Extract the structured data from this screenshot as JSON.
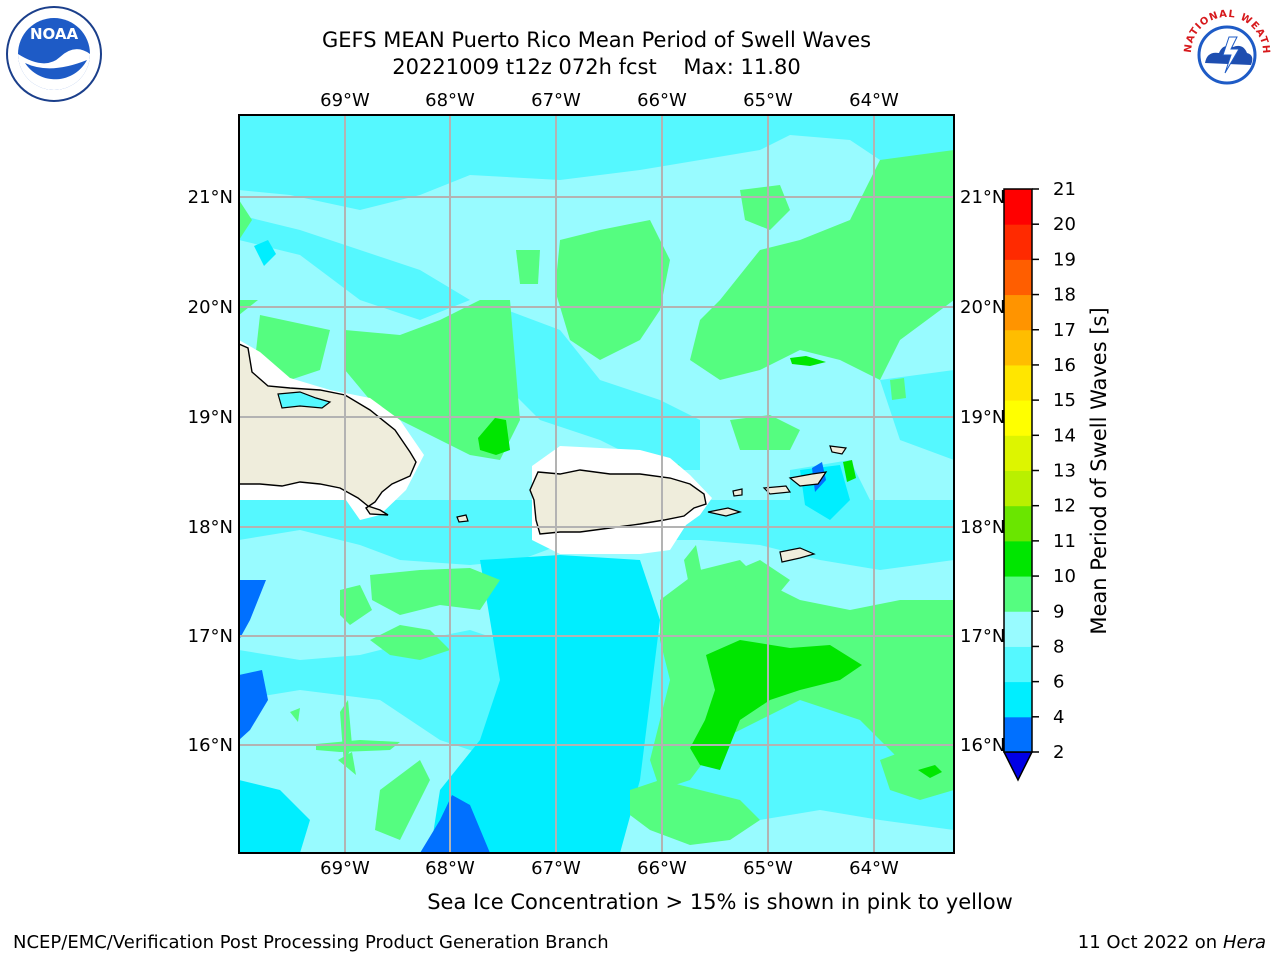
{
  "title": {
    "line1": "GEFS MEAN Puerto Rico Mean Period of Swell Waves",
    "line2": "20221009 t12z 072h fcst    Max: 11.80"
  },
  "map": {
    "lon_labels": [
      "69°W",
      "68°W",
      "67°W",
      "66°W",
      "65°W",
      "64°W"
    ],
    "lat_labels": [
      "21°N",
      "20°N",
      "19°N",
      "18°N",
      "17°N",
      "16°N"
    ],
    "colors": {
      "land": "#efeddc",
      "ocean_base": "#98fbff",
      "grid": "#b3b3b3"
    }
  },
  "colorbar": {
    "label": "Mean Period of Swell Waves [s]",
    "ticks": [
      "2",
      "4",
      "6",
      "8",
      "9",
      "10",
      "11",
      "12",
      "13",
      "14",
      "15",
      "16",
      "17",
      "18",
      "19",
      "20",
      "21"
    ],
    "colors": [
      "#0000e6",
      "#0070ff",
      "#00eeff",
      "#55f8ff",
      "#98fbff",
      "#55fd80",
      "#00e600",
      "#6ae600",
      "#b9f000",
      "#ddf500",
      "#ffff00",
      "#ffe600",
      "#ffbd00",
      "#ff9400",
      "#ff5e00",
      "#ff2a00",
      "#ff0000"
    ]
  },
  "note": "Sea Ice Concentration > 15% is shown in pink to yellow",
  "footer": {
    "left": "NCEP/EMC/Verification Post Processing Product Generation Branch",
    "right_prefix": "11 Oct 2022 on ",
    "right_machine": "Hera"
  },
  "logos": {
    "noaa_text": "NOAA",
    "nws_text": "NATIONAL WEATHER SERVICE"
  }
}
